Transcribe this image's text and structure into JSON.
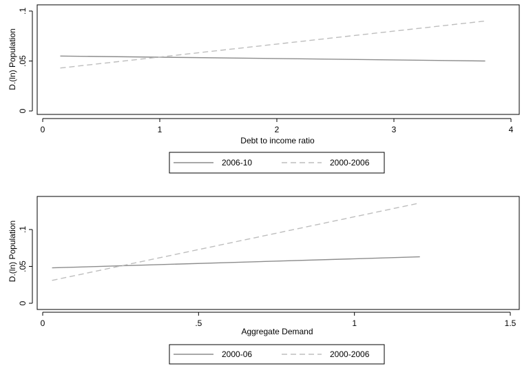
{
  "chart_data": [
    {
      "type": "line",
      "xlabel": "Debt to income ratio",
      "ylabel": "D.(ln) Population",
      "xlim": [
        0,
        4
      ],
      "ylim": [
        0,
        0.1
      ],
      "xticks": [
        {
          "value": 0,
          "label": "0"
        },
        {
          "value": 1,
          "label": "1"
        },
        {
          "value": 2,
          "label": "2"
        },
        {
          "value": 3,
          "label": "3"
        },
        {
          "value": 4,
          "label": "4"
        }
      ],
      "yticks": [
        {
          "value": 0,
          "label": "0"
        },
        {
          "value": 0.05,
          "label": ".05"
        },
        {
          "value": 0.1,
          "label": ".1"
        }
      ],
      "grid": false,
      "legend_position": "bottom",
      "series": [
        {
          "name": "2006-10",
          "style": "solid",
          "color": "#8c8c8c",
          "x": [
            0.15,
            3.78
          ],
          "y": [
            0.055,
            0.05
          ]
        },
        {
          "name": "2000-2006",
          "style": "dashed",
          "color": "#bdbdbd",
          "x": [
            0.15,
            3.78
          ],
          "y": [
            0.043,
            0.09
          ]
        }
      ]
    },
    {
      "type": "line",
      "xlabel": "Aggregate Demand",
      "ylabel": "D.(ln) Population",
      "xlim": [
        0,
        1.5
      ],
      "ylim": [
        0,
        0.14
      ],
      "xticks": [
        {
          "value": 0,
          "label": "0"
        },
        {
          "value": 0.5,
          "label": ".5"
        },
        {
          "value": 1,
          "label": "1"
        },
        {
          "value": 1.5,
          "label": "1.5"
        }
      ],
      "yticks": [
        {
          "value": 0,
          "label": "0"
        },
        {
          "value": 0.05,
          "label": ".05"
        },
        {
          "value": 0.1,
          "label": ".1"
        }
      ],
      "grid": false,
      "legend_position": "bottom",
      "series": [
        {
          "name": "2000-06",
          "style": "solid",
          "color": "#8c8c8c",
          "x": [
            0.03,
            1.21
          ],
          "y": [
            0.048,
            0.063
          ]
        },
        {
          "name": "2000-2006",
          "style": "dashed",
          "color": "#bdbdbd",
          "x": [
            0.03,
            1.21
          ],
          "y": [
            0.031,
            0.136
          ]
        }
      ]
    }
  ]
}
